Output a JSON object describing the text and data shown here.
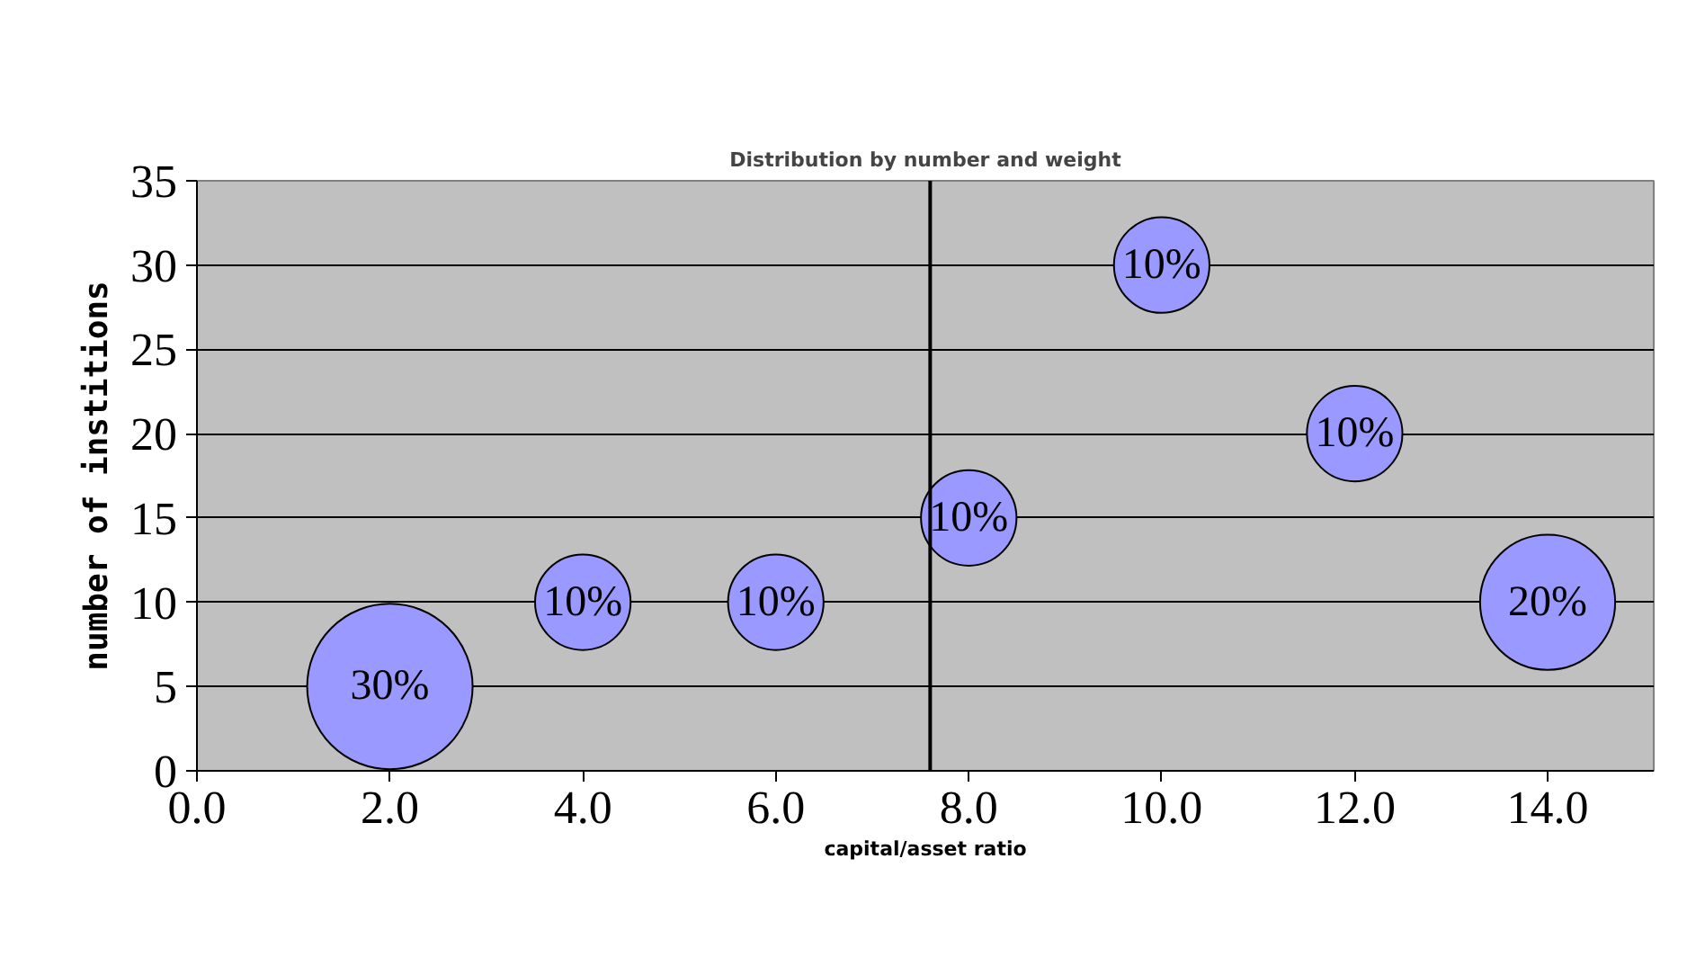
{
  "chart_data": {
    "type": "bubble",
    "title": "Distribution by number and weight",
    "xlabel": "capital/asset ratio",
    "ylabel": "number of institions",
    "x": [
      2,
      4,
      6,
      8,
      10,
      12,
      14
    ],
    "series": [
      {
        "color": "#9999ff",
        "values": [
          5,
          10,
          10,
          15,
          30,
          20,
          10
        ],
        "sizes": [
          30,
          10,
          10,
          10,
          10,
          10,
          20
        ],
        "value_labels": [
          "30%",
          "10%",
          "10%",
          "10%",
          "10%",
          "10%",
          "20%"
        ]
      }
    ],
    "xlim": [
      0,
      15.1
    ],
    "xticks": [
      {
        "value": 0,
        "label": "0.0"
      },
      {
        "value": 2,
        "label": "2.0"
      },
      {
        "value": 4,
        "label": "4.0"
      },
      {
        "value": 6,
        "label": "6.0"
      },
      {
        "value": 8,
        "label": "8.0"
      },
      {
        "value": 10,
        "label": "10.0"
      },
      {
        "value": 12,
        "label": "12.0"
      },
      {
        "value": 14,
        "label": "14.0"
      }
    ],
    "ylim": [
      0,
      35
    ],
    "yticks": [
      0,
      5,
      10,
      15,
      20,
      25,
      30,
      35
    ],
    "ref_lines": [
      {
        "axis": "x",
        "value": 7.6,
        "color": "#000000"
      }
    ],
    "grid": "y"
  }
}
